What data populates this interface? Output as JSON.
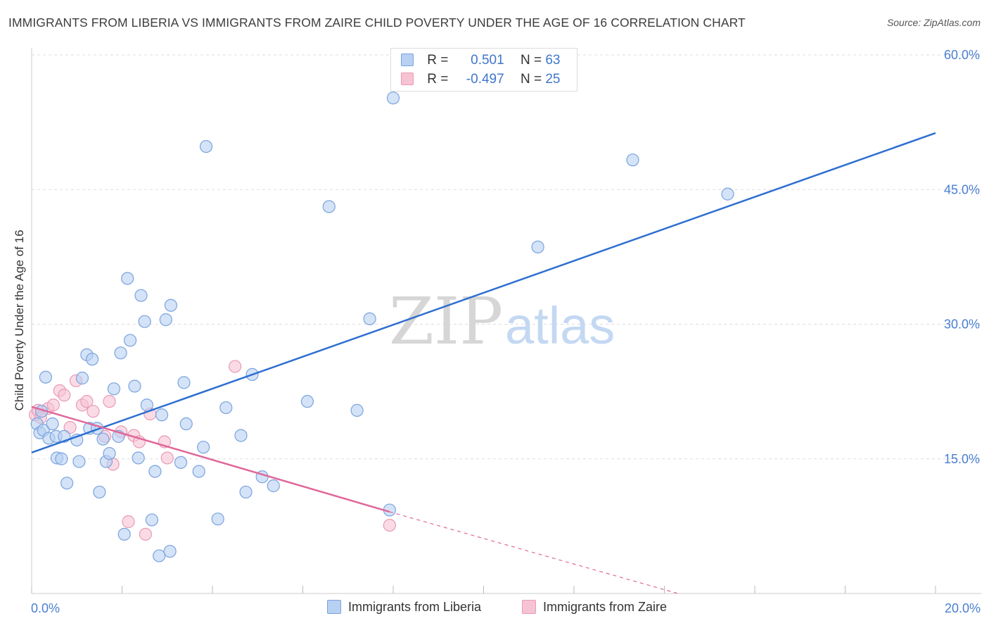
{
  "header": {
    "title": "IMMIGRANTS FROM LIBERIA VS IMMIGRANTS FROM ZAIRE CHILD POVERTY UNDER THE AGE OF 16 CORRELATION CHART",
    "source": "Source: ZipAtlas.com"
  },
  "watermark": {
    "zip": "ZIP",
    "atlas": "atlas"
  },
  "legend": {
    "liberia": {
      "r_label": "R =",
      "r_value": "0.501",
      "n_label": "N =",
      "n_value": "63"
    },
    "zaire": {
      "r_label": "R =",
      "r_value": "-0.497",
      "n_label": "N =",
      "n_value": "25"
    }
  },
  "bottom_legend": {
    "liberia": "Immigrants from Liberia",
    "zaire": "Immigrants from Zaire"
  },
  "colors": {
    "liberia_fill": "#b8d0f2",
    "liberia_stroke": "#7aa3de",
    "liberia_line": "#2e6fd0",
    "zaire_fill": "#f6c3d3",
    "zaire_stroke": "#e99ab5",
    "zaire_line": "#e0679a",
    "tick_text": "#4a7fd0",
    "grid": "#dddddd"
  },
  "chart_data": {
    "type": "scatter",
    "title": "IMMIGRANTS FROM LIBERIA VS IMMIGRANTS FROM ZAIRE CHILD POVERTY UNDER THE AGE OF 16 CORRELATION CHART",
    "xlabel": "",
    "ylabel": "Child Poverty Under the Age of 16",
    "xlim": [
      0,
      20
    ],
    "ylim": [
      0,
      60
    ],
    "x_tick_labels": [
      "0.0%",
      "20.0%"
    ],
    "y_ticks": [
      {
        "value": 15,
        "label": "15.0%"
      },
      {
        "value": 30,
        "label": "30.0%"
      },
      {
        "value": 45,
        "label": "45.0%"
      },
      {
        "value": 60,
        "label": "60.0%"
      }
    ],
    "grid": true,
    "series": [
      {
        "name": "Immigrants from Liberia",
        "color": "#b8d0f2",
        "points": [
          [
            0.12,
            18.9
          ],
          [
            0.18,
            17.9
          ],
          [
            0.26,
            18.2
          ],
          [
            0.31,
            24.1
          ],
          [
            0.38,
            17.3
          ],
          [
            0.46,
            18.9
          ],
          [
            0.54,
            17.5
          ],
          [
            0.56,
            15.1
          ],
          [
            0.66,
            15.0
          ],
          [
            0.72,
            17.5
          ],
          [
            0.78,
            12.3
          ],
          [
            1.0,
            17.1
          ],
          [
            1.05,
            14.7
          ],
          [
            1.12,
            24.0
          ],
          [
            1.22,
            26.6
          ],
          [
            1.28,
            18.4
          ],
          [
            1.34,
            26.1
          ],
          [
            1.45,
            18.4
          ],
          [
            1.5,
            11.3
          ],
          [
            1.58,
            17.2
          ],
          [
            1.65,
            14.7
          ],
          [
            1.72,
            15.6
          ],
          [
            1.82,
            22.8
          ],
          [
            1.92,
            17.5
          ],
          [
            1.97,
            26.8
          ],
          [
            2.05,
            6.6
          ],
          [
            2.12,
            35.1
          ],
          [
            2.18,
            28.2
          ],
          [
            2.28,
            23.1
          ],
          [
            2.36,
            15.1
          ],
          [
            2.42,
            33.2
          ],
          [
            2.5,
            30.3
          ],
          [
            2.55,
            21.0
          ],
          [
            2.66,
            8.2
          ],
          [
            2.73,
            13.6
          ],
          [
            2.82,
            4.2
          ],
          [
            2.88,
            19.9
          ],
          [
            2.97,
            30.5
          ],
          [
            3.06,
            4.7
          ],
          [
            3.08,
            32.1
          ],
          [
            3.3,
            14.6
          ],
          [
            3.37,
            23.5
          ],
          [
            3.42,
            18.9
          ],
          [
            3.7,
            13.6
          ],
          [
            3.8,
            16.3
          ],
          [
            3.86,
            49.8
          ],
          [
            4.12,
            8.3
          ],
          [
            4.3,
            20.7
          ],
          [
            4.63,
            17.6
          ],
          [
            4.74,
            11.3
          ],
          [
            4.88,
            24.4
          ],
          [
            5.1,
            13.0
          ],
          [
            5.35,
            12.0
          ],
          [
            6.1,
            21.4
          ],
          [
            6.58,
            43.1
          ],
          [
            7.2,
            20.4
          ],
          [
            7.48,
            30.6
          ],
          [
            7.92,
            9.3
          ],
          [
            8.0,
            55.2
          ],
          [
            11.2,
            38.6
          ],
          [
            13.3,
            48.3
          ],
          [
            15.4,
            44.5
          ],
          [
            0.22,
            20.3
          ]
        ]
      },
      {
        "name": "Immigrants from Zaire",
        "color": "#f6c3d3",
        "points": [
          [
            0.08,
            19.9
          ],
          [
            0.14,
            20.4
          ],
          [
            0.2,
            19.6
          ],
          [
            0.36,
            20.6
          ],
          [
            0.48,
            21.0
          ],
          [
            0.62,
            22.6
          ],
          [
            0.72,
            22.1
          ],
          [
            0.85,
            18.5
          ],
          [
            0.98,
            23.7
          ],
          [
            1.12,
            21.0
          ],
          [
            1.22,
            21.4
          ],
          [
            1.36,
            20.3
          ],
          [
            1.62,
            17.5
          ],
          [
            1.72,
            21.4
          ],
          [
            1.8,
            14.4
          ],
          [
            1.98,
            18.0
          ],
          [
            2.14,
            8.0
          ],
          [
            2.26,
            17.6
          ],
          [
            2.38,
            16.9
          ],
          [
            2.52,
            6.6
          ],
          [
            2.62,
            20.0
          ],
          [
            2.94,
            16.9
          ],
          [
            3.0,
            15.1
          ],
          [
            4.5,
            25.3
          ],
          [
            7.92,
            7.6
          ]
        ]
      }
    ],
    "trend_lines": [
      {
        "series": "Immigrants from Liberia",
        "x0": 0,
        "y0": 15.7,
        "x1": 20,
        "y1": 51.3,
        "r": 0.501,
        "n": 63
      },
      {
        "series": "Immigrants from Zaire",
        "x0": 0,
        "y0": 20.8,
        "x1": 7.92,
        "y1": 9.1,
        "dashed_to_x": 14.3,
        "dashed_to_y": 0,
        "r": -0.497,
        "n": 25
      }
    ]
  }
}
